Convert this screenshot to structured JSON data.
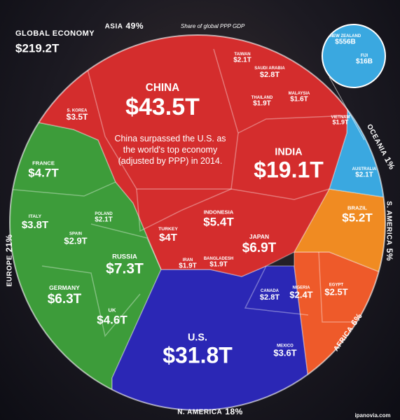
{
  "header": {
    "title": "GLOBAL ECONOMY",
    "total": "$219.2T"
  },
  "regions": [
    {
      "name": "ASIA",
      "share": "49%",
      "note": "Share of global PPP GDP"
    },
    {
      "name": "OCEANIA",
      "share": "1%"
    },
    {
      "name": "S. AMERICA",
      "share": "5%"
    },
    {
      "name": "AFRICA",
      "share": "6%"
    },
    {
      "name": "N. AMERICA",
      "share": "18%"
    },
    {
      "name": "EUROPE",
      "share": "21%"
    }
  ],
  "countries": [
    {
      "name": "CHINA",
      "value": "$43.5T"
    },
    {
      "name": "INDIA",
      "value": "$19.1T"
    },
    {
      "name": "U.S.",
      "value": "$31.8T"
    },
    {
      "name": "RUSSIA",
      "value": "$7.3T"
    },
    {
      "name": "GERMANY",
      "value": "$6.3T"
    },
    {
      "name": "JAPAN",
      "value": "$6.9T"
    },
    {
      "name": "INDONESIA",
      "value": "$5.4T"
    },
    {
      "name": "BRAZIL",
      "value": "$5.2T"
    },
    {
      "name": "FRANCE",
      "value": "$4.7T"
    },
    {
      "name": "UK",
      "value": "$4.6T"
    },
    {
      "name": "TURKEY",
      "value": "$4T"
    },
    {
      "name": "ITALY",
      "value": "$3.8T"
    },
    {
      "name": "S. KOREA",
      "value": "$3.5T"
    },
    {
      "name": "MEXICO",
      "value": "$3.6T"
    },
    {
      "name": "SPAIN",
      "value": "$2.9T"
    },
    {
      "name": "SAUDI ARABIA",
      "value": "$2.8T"
    },
    {
      "name": "CANADA",
      "value": "$2.8T"
    },
    {
      "name": "EGYPT",
      "value": "$2.5T"
    },
    {
      "name": "NIGERIA",
      "value": "$2.4T"
    },
    {
      "name": "TAIWAN",
      "value": "$2.1T"
    },
    {
      "name": "AUSTRALIA",
      "value": "$2.1T"
    },
    {
      "name": "POLAND",
      "value": "$2.1T"
    },
    {
      "name": "THAILAND",
      "value": "$1.9T"
    },
    {
      "name": "MALAYSIA",
      "value": "$1.6T"
    },
    {
      "name": "VIETNAM",
      "value": "$1.9T"
    },
    {
      "name": "IRAN",
      "value": "$1.9T"
    },
    {
      "name": "BANGLADESH",
      "value": "$1.9T"
    },
    {
      "name": "NEW ZEALAND",
      "value": "$556B"
    },
    {
      "name": "FIJI",
      "value": "$16B"
    }
  ],
  "annotation": "China surpassed the U.S. as the world's top economy (adjusted by PPP) in 2014.",
  "watermark": "ipanovia.com"
}
